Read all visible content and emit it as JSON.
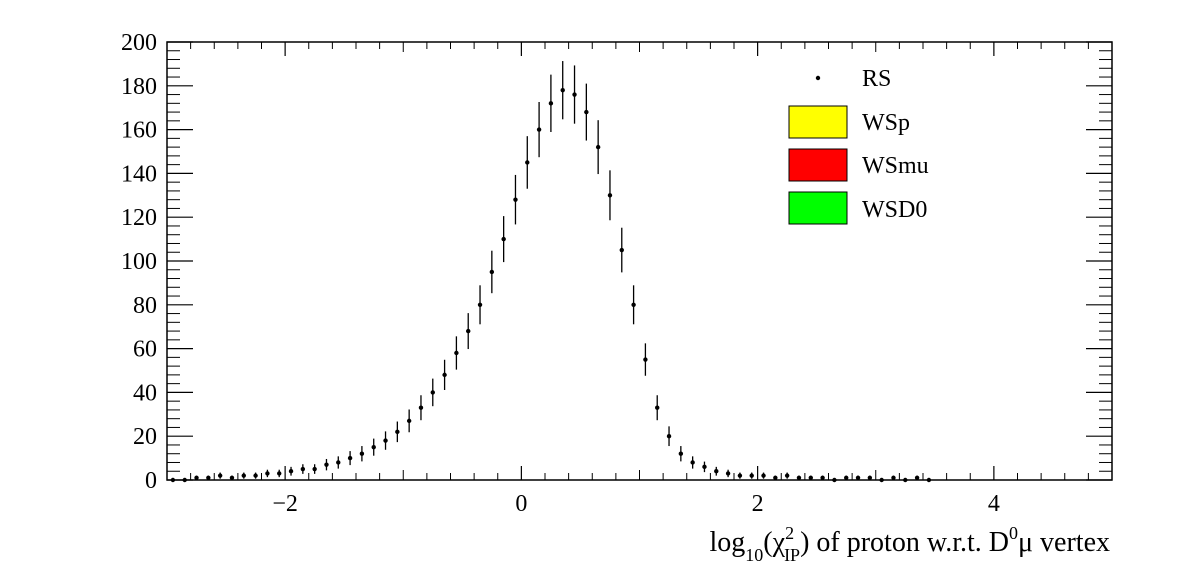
{
  "chart_data": {
    "type": "scatter",
    "title": "",
    "xlabel": {
      "main": "log",
      "sub10": "10",
      "paren_open": "(",
      "chi": "χ",
      "sup2": "2",
      "subIP": "IP",
      "rest": ") of proton w.r.t. D",
      "sup0": "0",
      "mu": "μ",
      "vertex": " vertex"
    },
    "ylabel": "",
    "xlim": [
      -3.0,
      5.0
    ],
    "ylim": [
      0,
      200
    ],
    "xticks": [
      -2,
      0,
      2,
      4
    ],
    "xtick_labels": [
      "−2",
      "0",
      "2",
      "4"
    ],
    "yticks": [
      0,
      20,
      40,
      60,
      80,
      100,
      120,
      140,
      160,
      180,
      200
    ],
    "ytick_labels": [
      "0",
      "20",
      "40",
      "60",
      "80",
      "100",
      "120",
      "140",
      "160",
      "180",
      "200"
    ],
    "grid": false,
    "legend": {
      "placement": "top-right",
      "entries": [
        {
          "label": "RS",
          "style": "marker",
          "color": "#000000"
        },
        {
          "label": "WSp",
          "style": "box",
          "color": "#ffff00"
        },
        {
          "label": "WSmu",
          "style": "box",
          "color": "#ff0000"
        },
        {
          "label": "WSD0",
          "style": "box",
          "color": "#00ff00"
        }
      ]
    },
    "series": [
      {
        "name": "RS",
        "x": [
          -2.95,
          -2.85,
          -2.75,
          -2.65,
          -2.55,
          -2.45,
          -2.35,
          -2.25,
          -2.15,
          -2.05,
          -1.95,
          -1.85,
          -1.75,
          -1.65,
          -1.55,
          -1.45,
          -1.35,
          -1.25,
          -1.15,
          -1.05,
          -0.95,
          -0.85,
          -0.75,
          -0.65,
          -0.55,
          -0.45,
          -0.35,
          -0.25,
          -0.15,
          -0.05,
          0.05,
          0.15,
          0.25,
          0.35,
          0.45,
          0.55,
          0.65,
          0.75,
          0.85,
          0.95,
          1.05,
          1.15,
          1.25,
          1.35,
          1.45,
          1.55,
          1.65,
          1.75,
          1.85,
          1.95,
          2.05,
          2.15,
          2.25,
          2.35,
          2.45,
          2.55,
          2.65,
          2.75,
          2.85,
          2.95,
          3.05,
          3.15,
          3.25,
          3.35,
          3.45
        ],
        "y": [
          0,
          0,
          1,
          1,
          2,
          1,
          2,
          2,
          3,
          3,
          4,
          5,
          5,
          7,
          8,
          10,
          12,
          15,
          18,
          22,
          27,
          33,
          40,
          48,
          58,
          68,
          80,
          95,
          110,
          128,
          145,
          160,
          172,
          178,
          176,
          168,
          152,
          130,
          105,
          80,
          55,
          33,
          20,
          12,
          8,
          6,
          4,
          3,
          2,
          2,
          2,
          1,
          2,
          1,
          1,
          1,
          0,
          1,
          1,
          1,
          0,
          1,
          0,
          1,
          0
        ],
        "yerr": [
          0,
          0,
          1,
          1,
          1.4,
          1,
          1.4,
          1.4,
          1.7,
          1.7,
          2,
          2.2,
          2.2,
          2.6,
          2.8,
          3.2,
          3.5,
          3.9,
          4.2,
          4.7,
          5.2,
          5.7,
          6.3,
          6.9,
          7.6,
          8.2,
          8.9,
          9.7,
          10.5,
          11.3,
          12,
          12.6,
          13.1,
          13.3,
          13.3,
          13,
          12.3,
          11.4,
          10.2,
          8.9,
          7.4,
          5.7,
          4.5,
          3.5,
          2.8,
          2.4,
          2,
          1.7,
          1.4,
          1.4,
          1.4,
          1,
          1.4,
          1,
          1,
          1,
          0,
          1,
          1,
          1,
          0,
          1,
          0,
          1,
          0
        ],
        "color": "#000000"
      }
    ]
  }
}
